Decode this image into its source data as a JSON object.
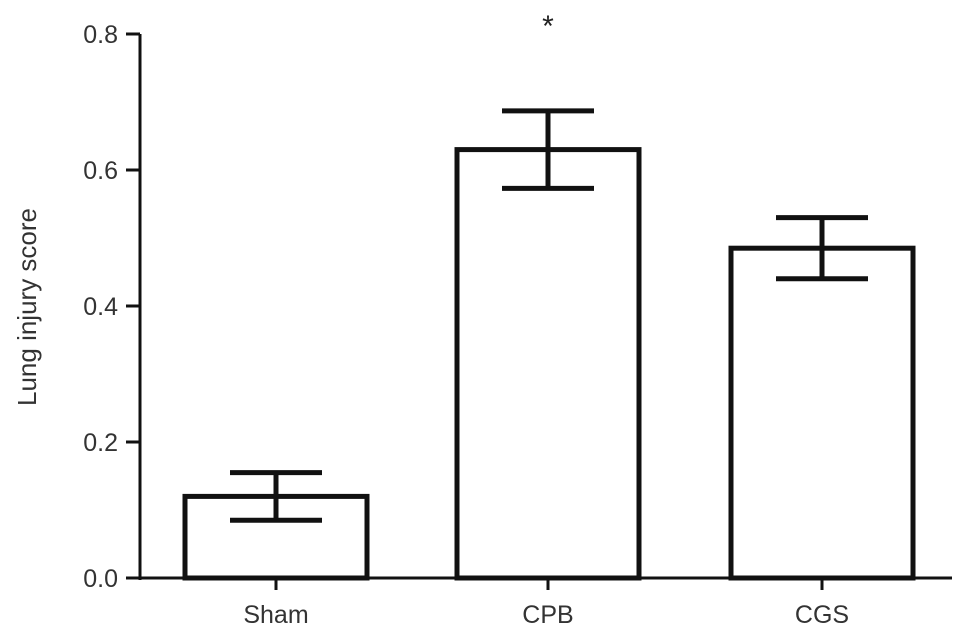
{
  "chart_data": {
    "type": "bar",
    "title": "",
    "xlabel": "",
    "ylabel": "Lung injury score",
    "ylim": [
      0,
      0.8
    ],
    "yticks": [
      "0.0",
      "0.2",
      "0.4",
      "0.6",
      "0.8"
    ],
    "categories": [
      "Sham",
      "CPB",
      "CGS"
    ],
    "values": [
      0.12,
      0.63,
      0.485
    ],
    "error": [
      0.035,
      0.057,
      0.045
    ],
    "annotations": [
      {
        "category": "CPB",
        "text": "*"
      }
    ],
    "grid": false,
    "legend": "none",
    "colors": {
      "bar_fill": "#ffffff",
      "bar_stroke": "#111111",
      "axis": "#111111"
    }
  }
}
